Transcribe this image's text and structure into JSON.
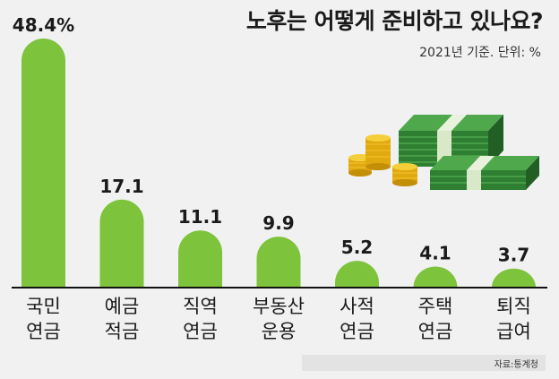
{
  "chart_data": {
    "type": "bar",
    "title": "노후는 어떻게 준비하고 있나요?",
    "subtitle": "2021년 기준. 단위: %",
    "categories": [
      [
        "국민",
        "연금"
      ],
      [
        "예금",
        "적금"
      ],
      [
        "직역",
        "연금"
      ],
      [
        "부동산",
        "운용"
      ],
      [
        "사적",
        "연금"
      ],
      [
        "주택",
        "연금"
      ],
      [
        "퇴직",
        "급여"
      ]
    ],
    "values": [
      48.4,
      17.1,
      11.1,
      9.9,
      5.2,
      4.1,
      3.7
    ],
    "value_labels": [
      "48.4%",
      "17.1",
      "11.1",
      "9.9",
      "5.2",
      "4.1",
      "3.7"
    ],
    "ylim": [
      0,
      48.4
    ],
    "grid": false,
    "colors": {
      "bar": "#7dc33b",
      "background": "#f1f1f1",
      "baseline": "#111111"
    }
  },
  "source": "자료:통계청",
  "illustration": {
    "icon": "money-stacks-and-coins-icon"
  }
}
